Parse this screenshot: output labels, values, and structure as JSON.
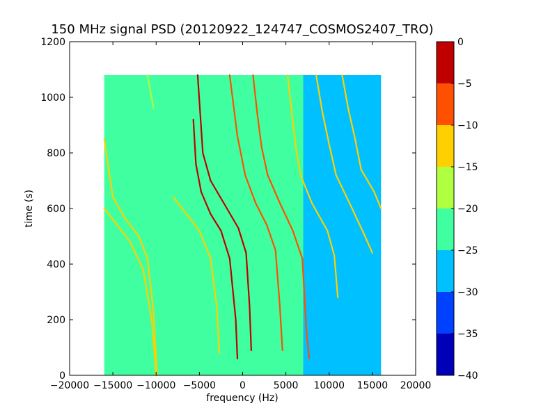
{
  "chart_data": {
    "type": "heatmap",
    "title": "150 MHz signal PSD (20120922_124747_COSMOS2407_TRO)",
    "xlabel": "frequency (Hz)",
    "ylabel": "time (s)",
    "xlim": [
      -20000,
      20000
    ],
    "ylim": [
      0,
      1200
    ],
    "x_ticks": [
      -20000,
      -15000,
      -10000,
      -5000,
      0,
      5000,
      10000,
      15000,
      20000
    ],
    "x_tick_labels": [
      "−20000",
      "−15000",
      "−10000",
      "−5000",
      "0",
      "5000",
      "10000",
      "15000",
      "20000"
    ],
    "y_ticks": [
      0,
      200,
      400,
      600,
      800,
      1000,
      1200
    ],
    "y_tick_labels": [
      "0",
      "200",
      "400",
      "600",
      "800",
      "1000",
      "1200"
    ],
    "data_extent": {
      "x": [
        -16000,
        16000
      ],
      "y": [
        0,
        1080
      ]
    },
    "colorbar": {
      "levels": [
        -40,
        -35,
        -30,
        -25,
        -20,
        -15,
        -10,
        -5,
        0
      ],
      "tick_labels": [
        "−40",
        "−35",
        "−30",
        "−25",
        "−20",
        "−15",
        "−10",
        "−5",
        "0"
      ],
      "colors": [
        "#0000b8",
        "#0040ff",
        "#00c0ff",
        "#40ffa0",
        "#b0ff40",
        "#ffd000",
        "#ff5000",
        "#c00000"
      ]
    },
    "background_regions": [
      {
        "x": [
          -16000,
          7000
        ],
        "level_range": [
          -25,
          -20
        ]
      },
      {
        "x": [
          7000,
          16000
        ],
        "level_range": [
          -30,
          -25
        ]
      }
    ],
    "traces": [
      {
        "points": [
          [
            -16000,
            850
          ],
          [
            -15000,
            640
          ],
          [
            -13500,
            560
          ],
          [
            -12000,
            500
          ],
          [
            -11000,
            420
          ],
          [
            -10300,
            230
          ],
          [
            -9900,
            0
          ]
        ],
        "level_range": [
          -15,
          -10
        ]
      },
      {
        "points": [
          [
            -16000,
            600
          ],
          [
            -14500,
            540
          ],
          [
            -13000,
            480
          ],
          [
            -11500,
            380
          ],
          [
            -10500,
            200
          ],
          [
            -10000,
            0
          ]
        ],
        "level_range": [
          -15,
          -10
        ]
      },
      {
        "points": [
          [
            -11000,
            1080
          ],
          [
            -10300,
            960
          ]
        ],
        "level_range": [
          -20,
          -15
        ]
      },
      {
        "points": [
          [
            -8000,
            640
          ],
          [
            -6500,
            580
          ],
          [
            -5000,
            520
          ],
          [
            -3700,
            420
          ],
          [
            -3000,
            250
          ],
          [
            -2700,
            80
          ]
        ],
        "level_range": [
          -15,
          -10
        ]
      },
      {
        "points": [
          [
            -5700,
            920
          ],
          [
            -5400,
            760
          ],
          [
            -4800,
            660
          ],
          [
            -3700,
            580
          ],
          [
            -2500,
            520
          ],
          [
            -1500,
            420
          ],
          [
            -800,
            200
          ],
          [
            -600,
            60
          ]
        ],
        "level_range": [
          -5,
          0
        ]
      },
      {
        "points": [
          [
            -5200,
            1080
          ],
          [
            -4600,
            800
          ],
          [
            -3700,
            700
          ],
          [
            -2000,
            610
          ],
          [
            -500,
            530
          ],
          [
            400,
            440
          ],
          [
            800,
            250
          ],
          [
            1000,
            90
          ]
        ],
        "level_range": [
          -5,
          0
        ]
      },
      {
        "points": [
          [
            -1500,
            1080
          ],
          [
            -600,
            860
          ],
          [
            300,
            720
          ],
          [
            1500,
            620
          ],
          [
            2800,
            540
          ],
          [
            3800,
            450
          ],
          [
            4300,
            250
          ],
          [
            4600,
            90
          ]
        ],
        "level_range": [
          -10,
          -5
        ]
      },
      {
        "points": [
          [
            1200,
            1080
          ],
          [
            1700,
            940
          ],
          [
            2200,
            820
          ],
          [
            2900,
            720
          ],
          [
            4300,
            620
          ],
          [
            5800,
            520
          ],
          [
            6900,
            420
          ],
          [
            7400,
            150
          ],
          [
            7700,
            60
          ]
        ],
        "level_range": [
          -10,
          -5
        ]
      },
      {
        "points": [
          [
            5200,
            1080
          ],
          [
            5700,
            940
          ],
          [
            6200,
            810
          ],
          [
            6700,
            720
          ],
          [
            8000,
            620
          ],
          [
            9800,
            520
          ],
          [
            10600,
            430
          ],
          [
            11000,
            280
          ]
        ],
        "level_range": [
          -15,
          -10
        ]
      },
      {
        "points": [
          [
            8500,
            1080
          ],
          [
            9200,
            950
          ],
          [
            10000,
            830
          ],
          [
            10800,
            720
          ],
          [
            12500,
            610
          ],
          [
            14000,
            510
          ],
          [
            15000,
            440
          ]
        ],
        "level_range": [
          -15,
          -10
        ]
      },
      {
        "points": [
          [
            11500,
            1080
          ],
          [
            12200,
            960
          ],
          [
            13000,
            850
          ],
          [
            13700,
            740
          ],
          [
            15200,
            660
          ],
          [
            16000,
            600
          ]
        ],
        "level_range": [
          -15,
          -10
        ]
      }
    ]
  }
}
